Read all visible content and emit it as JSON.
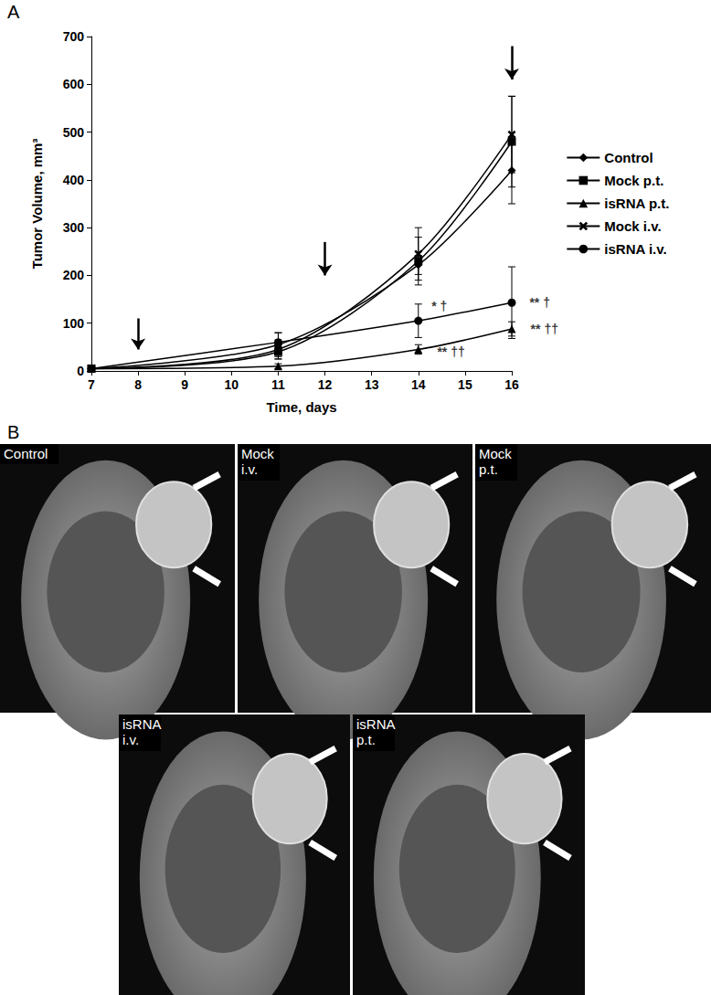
{
  "panel_a": "A",
  "chart_data": {
    "type": "line",
    "x_label": "Time, days",
    "y_label": "Tumor Volume, mm³",
    "x": [
      7,
      11,
      14,
      16
    ],
    "xlim": [
      7,
      16
    ],
    "xticks": [
      7,
      8,
      9,
      10,
      11,
      12,
      13,
      14,
      15,
      16
    ],
    "ylim": [
      0,
      700
    ],
    "yticks": [
      0,
      100,
      200,
      300,
      400,
      500,
      600,
      700
    ],
    "grid": false,
    "legend": "right",
    "series": [
      {
        "name": "Control",
        "color": "#000000",
        "marker": "diamond",
        "values": [
          5,
          55,
          222,
          420
        ],
        "errors": [
          null,
          25,
          20,
          70
        ]
      },
      {
        "name": "Mock p.t.",
        "color": "#000000",
        "marker": "square",
        "values": [
          5,
          40,
          230,
          480
        ],
        "errors": [
          null,
          15,
          50,
          95
        ]
      },
      {
        "name": "isRNA p.t.",
        "color": "#000000",
        "marker": "triangle",
        "values": [
          5,
          10,
          45,
          88
        ],
        "errors": [
          null,
          5,
          10,
          15
        ]
      },
      {
        "name": "Mock i.v.",
        "color": "#000000",
        "marker": "x",
        "values": [
          5,
          45,
          245,
          495
        ],
        "errors": [
          null,
          20,
          55,
          80
        ]
      },
      {
        "name": "isRNA i.v.",
        "color": "#000000",
        "marker": "circle",
        "values": [
          5,
          60,
          105,
          143
        ],
        "errors": [
          null,
          20,
          35,
          75
        ]
      }
    ],
    "arrows": [
      {
        "x": 8,
        "y": [
          110,
          45
        ]
      },
      {
        "x": 12,
        "y": [
          270,
          200
        ]
      },
      {
        "x": 16,
        "y": [
          680,
          610
        ]
      }
    ],
    "annotations": [
      {
        "x": 14.45,
        "y": 135,
        "text": "* †"
      },
      {
        "x": 16.6,
        "y": 143,
        "text": "** †"
      },
      {
        "x": 14.7,
        "y": 40,
        "text": "** ††"
      },
      {
        "x": 16.7,
        "y": 88,
        "text": "** ††"
      }
    ]
  },
  "panel_b": {
    "label": "B",
    "images": [
      {
        "label": "Control"
      },
      {
        "label": "Mock i.v."
      },
      {
        "label": "Mock p.t."
      },
      {
        "label": "isRNA i.v."
      },
      {
        "label": "isRNA p.t."
      }
    ]
  }
}
